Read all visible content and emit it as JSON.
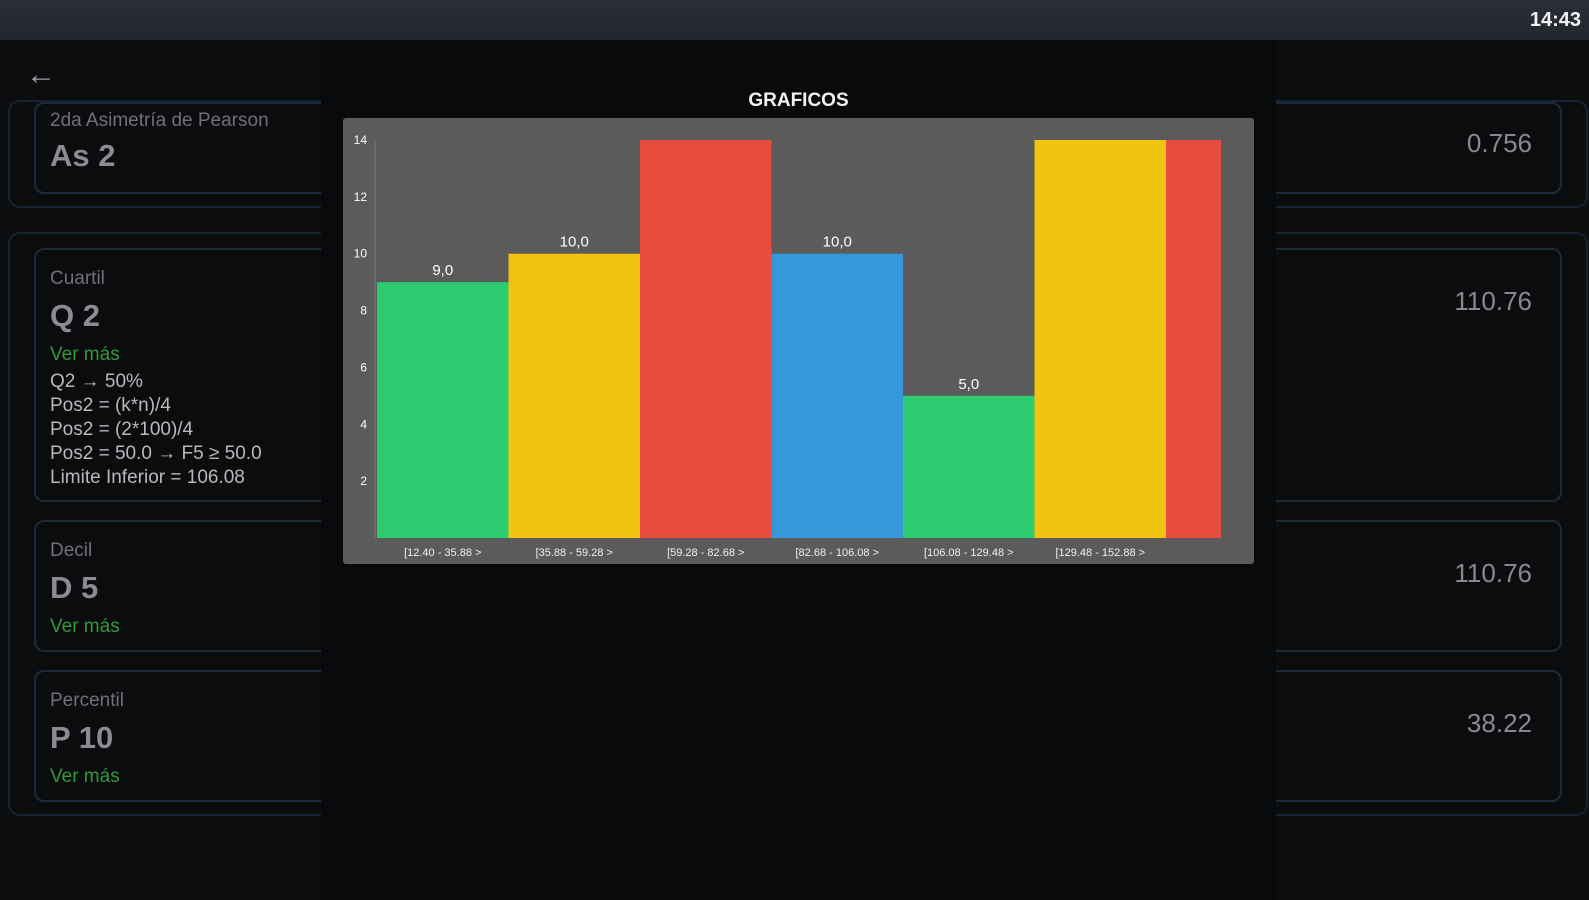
{
  "status_bar": {
    "time": "14:43"
  },
  "nav": {
    "back_icon": "arrow-left-icon"
  },
  "cards": {
    "asimetria": {
      "label": "2da Asimetría de Pearson",
      "symbol": "As 2",
      "value": "0.756"
    },
    "cuartil": {
      "label": "Cuartil",
      "symbol": "Q 2",
      "more": "Ver más",
      "value": "110.76",
      "details": [
        "Q2 → 50%",
        "Pos2 = (k*n)/4",
        "Pos2 = (2*100)/4",
        "Pos2 = 50.0 → F5 ≥ 50.0",
        "Limite Inferior = 106.08"
      ]
    },
    "decil": {
      "label": "Decil",
      "symbol": "D 5",
      "more": "Ver más",
      "value": "110.76"
    },
    "percentil": {
      "label": "Percentil",
      "symbol": "P 10",
      "more": "Ver más",
      "value": "38.22"
    }
  },
  "dialog": {
    "title": "GRAFICOS"
  },
  "colors": {
    "green": "#2ecc71",
    "yellow": "#f1c40f",
    "red": "#e74c3c",
    "blue": "#3498db",
    "plot_bg": "#5b5b5b",
    "label": "#ffffff"
  },
  "chart_data": {
    "type": "bar",
    "categories": [
      "[12.40 - 35.88 >",
      "[35.88 - 59.28 >",
      "[59.28 - 82.68 >",
      "[82.68 - 106.08 >",
      "[106.08 - 129.48 >",
      "[129.48 - 152.88 >",
      ""
    ],
    "values": [
      9.0,
      10.0,
      14,
      10.0,
      5.0,
      14,
      14
    ],
    "data_labels": [
      "9,0",
      "10,0",
      "",
      "10,0",
      "5,0",
      "",
      ""
    ],
    "bar_colors": [
      "green",
      "yellow",
      "red",
      "blue",
      "green",
      "yellow",
      "red"
    ],
    "ylim": [
      0,
      14
    ],
    "yticks": [
      2,
      4,
      6,
      8,
      10,
      12,
      14
    ],
    "grid": false,
    "title": "",
    "xlabel": "",
    "ylabel": ""
  }
}
